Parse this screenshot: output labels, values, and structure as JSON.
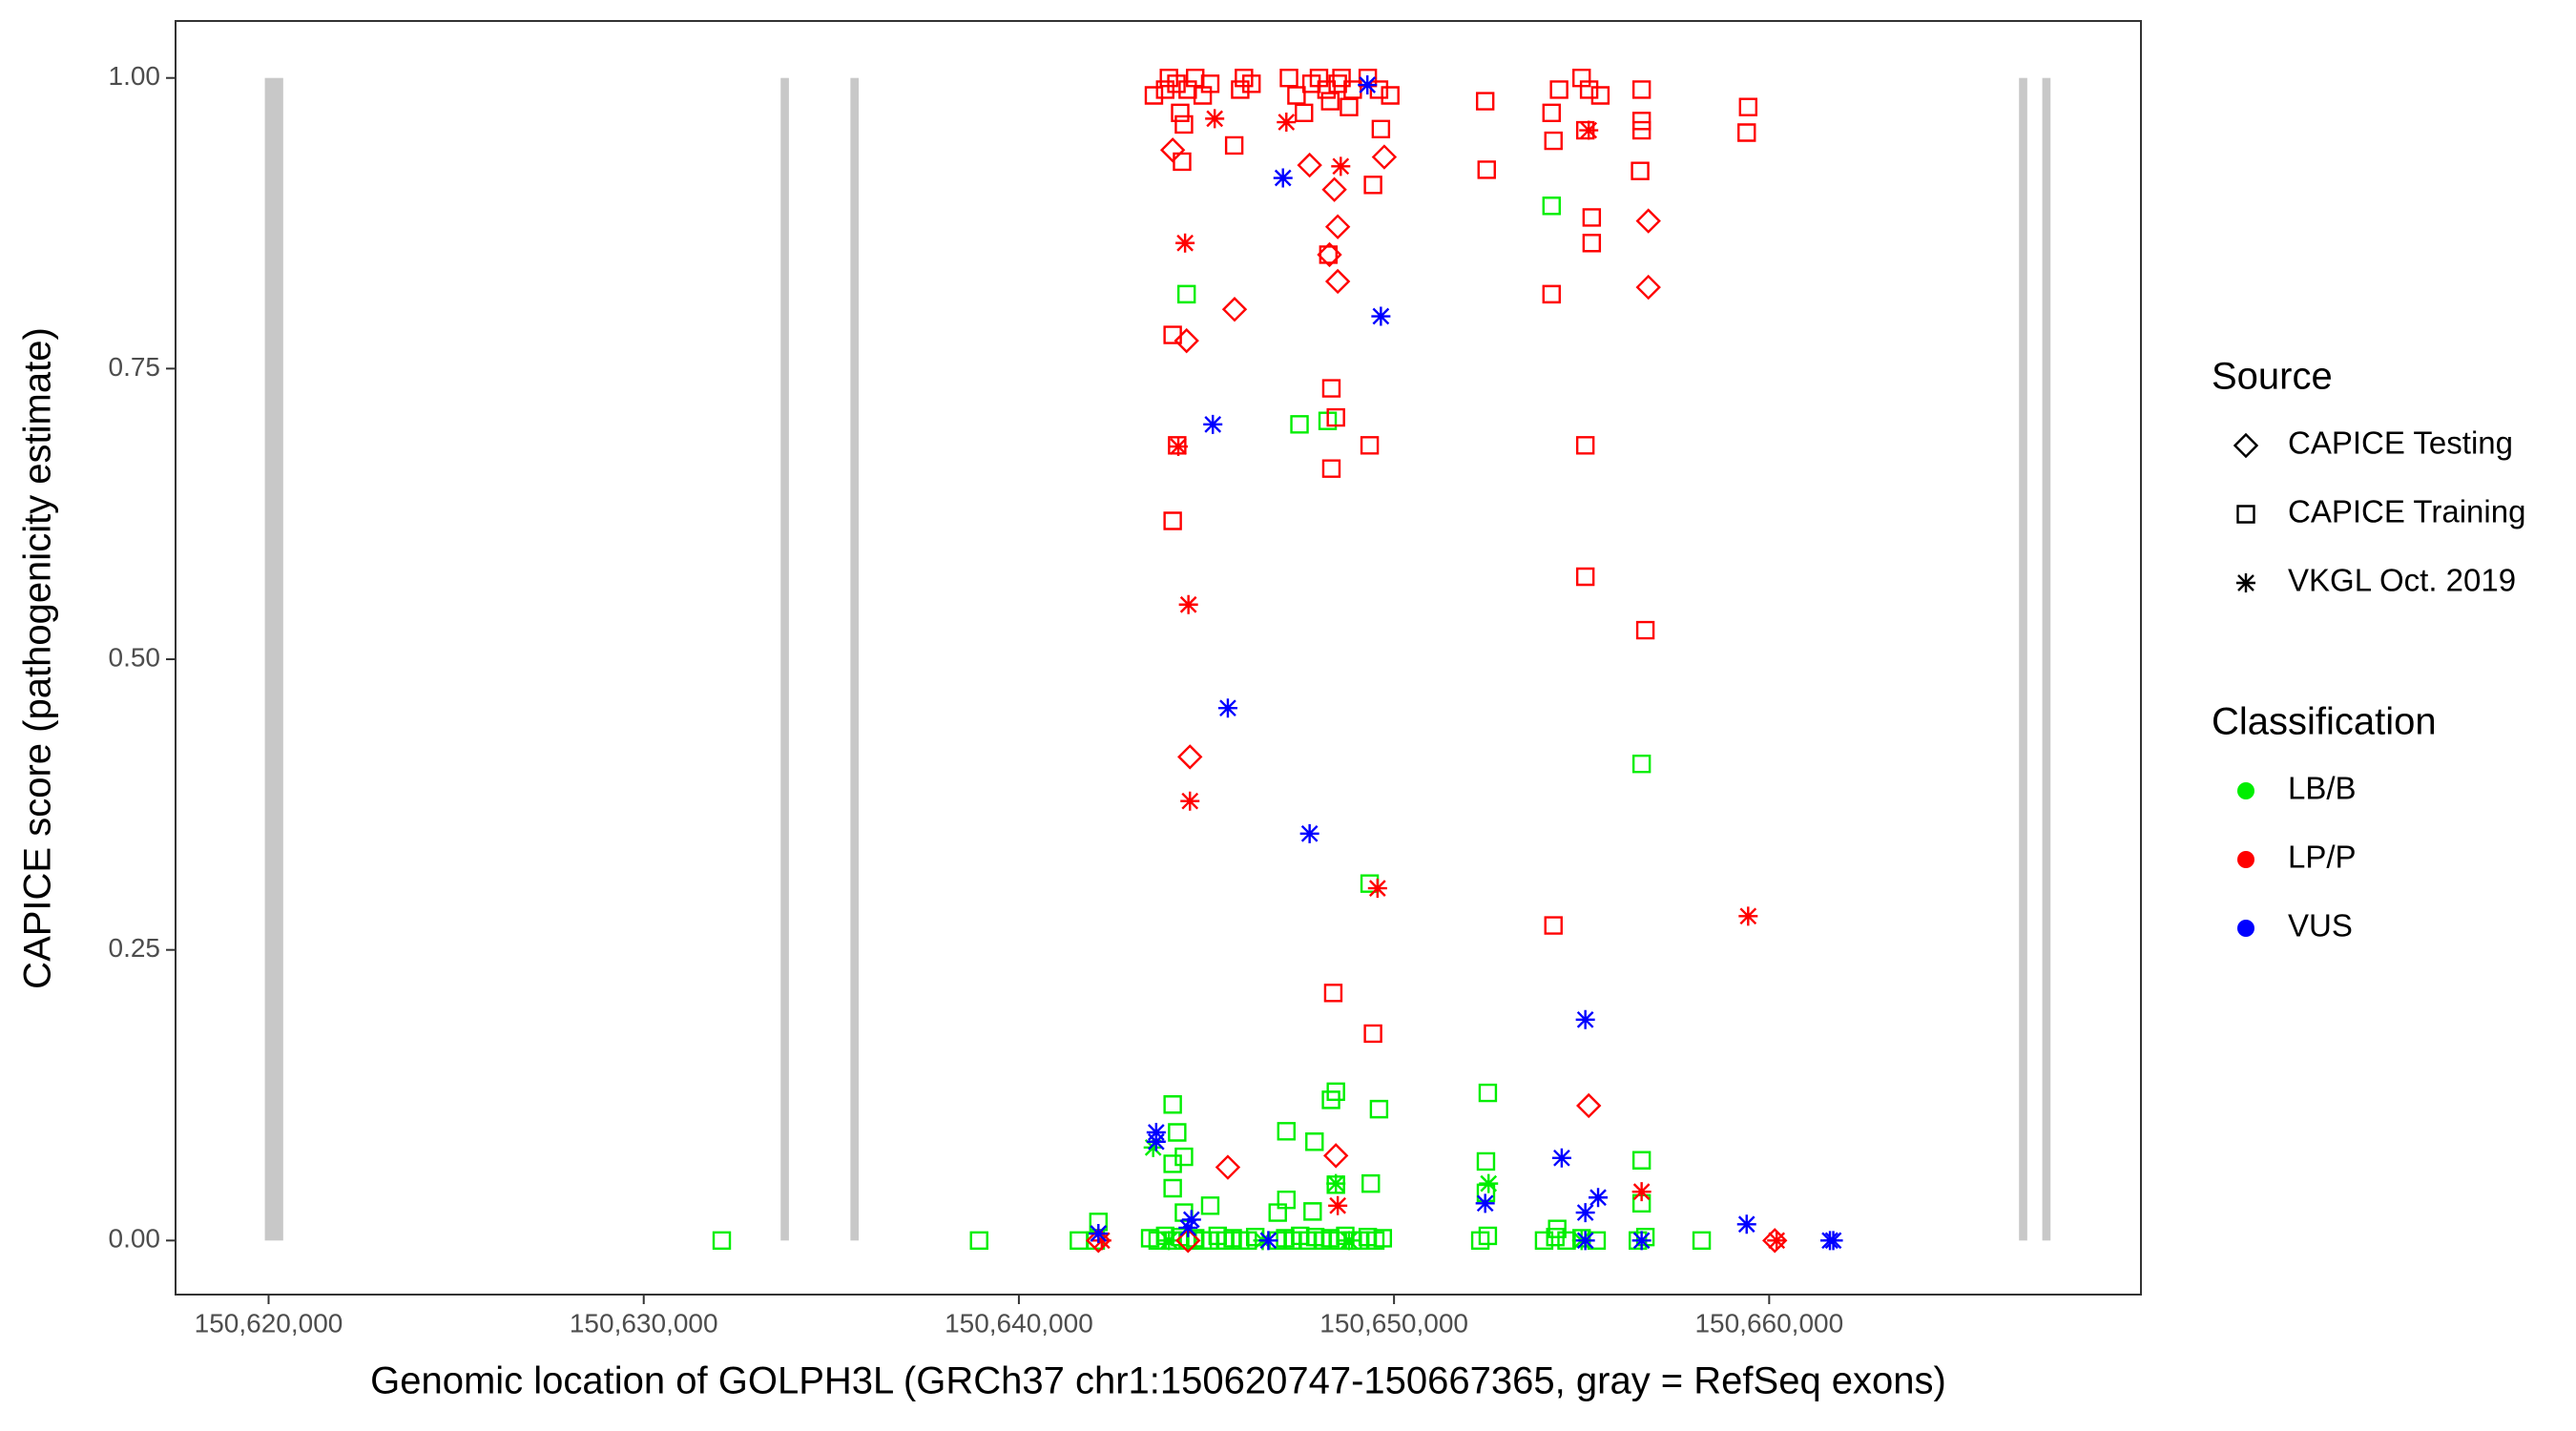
{
  "chart_data": {
    "type": "scatter",
    "x_label": "Genomic location of GOLPH3L (GRCh37 chr1:150620747-150667365, gray = RefSeq exons)",
    "y_label": "CAPICE score (pathogenicity estimate)",
    "xlim": [
      150617520,
      150669910
    ],
    "ylim": [
      -0.0465,
      1.049
    ],
    "xticks": [
      {
        "value": 150620000,
        "label": "150,620,000"
      },
      {
        "value": 150630000,
        "label": "150,630,000"
      },
      {
        "value": 150640000,
        "label": "150,640,000"
      },
      {
        "value": 150650000,
        "label": "150,650,000"
      },
      {
        "value": 150660000,
        "label": "150,660,000"
      }
    ],
    "yticks": [
      {
        "value": 0,
        "label": "0.00"
      },
      {
        "value": 0.25,
        "label": "0.25"
      },
      {
        "value": 0.5,
        "label": "0.50"
      },
      {
        "value": 0.75,
        "label": "0.75"
      },
      {
        "value": 1,
        "label": "1.00"
      }
    ],
    "grid": false,
    "exon_color": "#c8c8c8",
    "exons": [
      {
        "start": 150619900,
        "end": 150620390
      },
      {
        "start": 150633650,
        "end": 150633870
      },
      {
        "start": 150635510,
        "end": 150635730
      },
      {
        "start": 150666660,
        "end": 150666880
      },
      {
        "start": 150667280,
        "end": 150667500
      }
    ],
    "legends": [
      {
        "title": "Source",
        "entries": [
          {
            "label": "CAPICE Testing",
            "shape": "diamond"
          },
          {
            "label": "CAPICE Training",
            "shape": "square"
          },
          {
            "label": "VKGL Oct. 2019",
            "shape": "star"
          }
        ]
      },
      {
        "title": "Classification",
        "entries": [
          {
            "label": "LB/B",
            "color": "#00ee00"
          },
          {
            "label": "LP/P",
            "color": "#ff0000"
          },
          {
            "label": "VUS",
            "color": "#0000ff"
          }
        ]
      }
    ],
    "series": [
      {
        "shape": "square",
        "color": "#00ee00",
        "x": [
          150632080,
          150638940,
          150641600,
          150642050,
          150643500,
          150643700,
          150643900,
          150644100,
          150644300,
          150644500,
          150644700,
          150644900,
          150645100,
          150645300,
          150645500,
          150645700,
          150645900,
          150646100,
          150646300,
          150646900,
          150647100,
          150647300,
          150647500,
          150647700,
          150647900,
          150648100,
          150648300,
          150648500,
          150648700,
          150648900,
          150649100,
          150649300,
          150649500,
          150649700,
          150652300,
          150652500,
          150654000,
          150654300,
          150654600,
          150655000,
          150655400,
          150656500,
          150656700,
          150658200,
          150644470,
          150647480,
          150648230,
          150649350,
          150656600,
          150654200,
          150644100,
          150648450,
          150648320,
          150649600,
          150652500,
          150647130,
          150647880,
          150644220,
          150644400,
          150644100,
          150652450,
          150656600,
          150644100,
          150648450,
          150649380,
          150644400,
          150642120,
          150645100,
          150646900,
          150647130,
          150647830,
          150652450,
          150654350,
          150656600
        ],
        "y": [
          0,
          0,
          0,
          0,
          0.002,
          0,
          0.004,
          0,
          0.003,
          0,
          0.002,
          0,
          0,
          0.004,
          0,
          0.002,
          0,
          0,
          0.003,
          0,
          0.002,
          0,
          0.004,
          0,
          0.003,
          0,
          0.002,
          0,
          0.004,
          0,
          0,
          0.003,
          0,
          0.002,
          0,
          0.004,
          0,
          0.003,
          0,
          0.002,
          0,
          0,
          0.003,
          0,
          0.814,
          0.702,
          0.705,
          0.307,
          0.41,
          0.89,
          0.117,
          0.128,
          0.121,
          0.113,
          0.127,
          0.094,
          0.085,
          0.093,
          0.072,
          0.066,
          0.068,
          0.069,
          0.045,
          0.048,
          0.049,
          0.024,
          0.016,
          0.03,
          0.024,
          0.035,
          0.025,
          0.041,
          0.01,
          0.032
        ]
      },
      {
        "shape": "star",
        "color": "#00ee00",
        "x": [
          150643580,
          150648450,
          150652520,
          150644000,
          150646500,
          150648800,
          150655000
        ],
        "y": [
          0.08,
          0.049,
          0.049,
          0,
          0,
          0,
          0
        ]
      },
      {
        "shape": "square",
        "color": "#ff0000",
        "x": [
          150643600,
          150643900,
          150644000,
          150644200,
          150644300,
          150644400,
          150644500,
          150644700,
          150644900,
          150645100,
          150645900,
          150646000,
          150646200,
          150647200,
          150647400,
          150647600,
          150647800,
          150648000,
          150648200,
          150648300,
          150648500,
          150648600,
          150648800,
          150648900,
          150649300,
          150649600,
          150649900,
          150655200,
          150655500,
          150654400,
          150656600,
          150654200,
          150655000,
          150644100,
          150644100,
          150644220,
          150648330,
          150648450,
          150648330,
          150649350,
          150655100,
          150655100,
          150656700,
          150654250,
          150648380,
          150649440,
          150644350,
          150645740,
          150649440,
          150652470,
          150656560,
          150654200,
          150655270,
          150655270,
          150648250,
          150659400,
          150659440,
          150652430,
          150656600,
          150656600,
          150654250,
          150655100,
          150649650
        ],
        "y": [
          0.985,
          0.99,
          1,
          0.995,
          0.97,
          0.96,
          0.99,
          1,
          0.985,
          0.995,
          0.99,
          1,
          0.995,
          1,
          0.985,
          0.97,
          0.995,
          1,
          0.99,
          0.98,
          0.995,
          1,
          0.975,
          0.99,
          1,
          0.99,
          0.985,
          0.99,
          0.985,
          0.99,
          0.99,
          0.97,
          1,
          0.779,
          0.619,
          0.684,
          0.733,
          0.708,
          0.664,
          0.684,
          0.684,
          0.571,
          0.525,
          0.271,
          0.213,
          0.178,
          0.928,
          0.942,
          0.908,
          0.921,
          0.92,
          0.814,
          0.88,
          0.858,
          0.848,
          0.953,
          0.975,
          0.98,
          0.963,
          0.955,
          0.946,
          0.955,
          0.956
        ]
      },
      {
        "shape": "diamond",
        "color": "#ff0000",
        "x": [
          150644100,
          150644470,
          150645750,
          150644560,
          150647750,
          150648410,
          150648500,
          150648280,
          150648500,
          150649740,
          150656780,
          150656780,
          150655190,
          150645570,
          150648450,
          150660150,
          150642120,
          150644510
        ],
        "y": [
          0.938,
          0.774,
          0.801,
          0.416,
          0.925,
          0.904,
          0.872,
          0.848,
          0.825,
          0.932,
          0.877,
          0.82,
          0.116,
          0.063,
          0.073,
          0,
          0,
          0
        ]
      },
      {
        "shape": "star",
        "color": "#ff0000",
        "x": [
          150645220,
          150644430,
          150644250,
          150644520,
          150644560,
          150649560,
          150659440,
          150647130,
          150648580,
          150655190,
          150648500,
          150656600,
          150642210,
          150660200
        ],
        "y": [
          0.965,
          0.858,
          0.683,
          0.547,
          0.378,
          0.303,
          0.279,
          0.962,
          0.924,
          0.955,
          0.03,
          0.042,
          0,
          0
        ]
      },
      {
        "shape": "star",
        "color": "#0000ff",
        "x": [
          150647040,
          150649290,
          150649650,
          150645170,
          150645570,
          150647750,
          150655100,
          150654470,
          150643660,
          150643660,
          150644600,
          150659400,
          150652430,
          150655440,
          150655100,
          150655100,
          150656600,
          150661710,
          150661620,
          150642120,
          150646650,
          150644510
        ],
        "y": [
          0.914,
          0.994,
          0.795,
          0.702,
          0.458,
          0.35,
          0.19,
          0.071,
          0.093,
          0.085,
          0.018,
          0.014,
          0.032,
          0.037,
          0.024,
          0,
          0,
          0,
          0,
          0.006,
          0,
          0.011
        ]
      }
    ]
  }
}
